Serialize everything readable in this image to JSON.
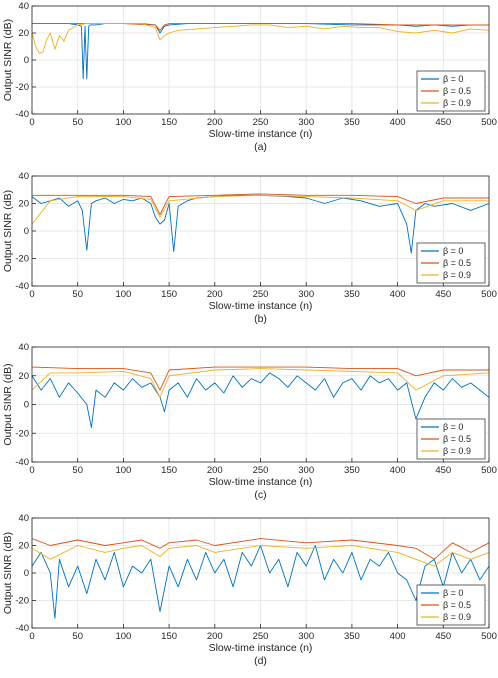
{
  "chart_data": [
    {
      "type": "line",
      "caption": "(a)",
      "xlabel": "Slow-time instance (n)",
      "ylabel": "Output SINR (dB)",
      "xlim": [
        0,
        500
      ],
      "ylim": [
        -40,
        40
      ],
      "xticks": [
        0,
        50,
        100,
        150,
        200,
        250,
        300,
        350,
        400,
        450,
        500
      ],
      "yticks": [
        -40,
        -20,
        0,
        20,
        40
      ],
      "grid": true,
      "legend_position": "bottom-right",
      "series": [
        {
          "name": "β = 0",
          "color": "#0072BD",
          "x": [
            0,
            10,
            20,
            30,
            40,
            50,
            54,
            56,
            58,
            60,
            62,
            64,
            70,
            80,
            100,
            120,
            135,
            140,
            145,
            150,
            170,
            200,
            250,
            300,
            350,
            400,
            420,
            440,
            460,
            480,
            500
          ],
          "y": [
            27,
            27,
            27,
            27,
            27,
            26,
            25,
            -14,
            25,
            -14,
            25,
            26,
            26,
            27,
            27,
            27,
            26,
            20,
            25,
            26,
            27,
            27,
            27,
            27,
            26,
            26,
            25,
            26,
            25,
            26,
            26
          ]
        },
        {
          "name": "β = 0.5",
          "color": "#D95319",
          "x": [
            0,
            50,
            100,
            135,
            140,
            145,
            150,
            200,
            250,
            300,
            350,
            400,
            450,
            500
          ],
          "y": [
            27,
            27,
            27,
            26,
            22,
            26,
            27,
            27,
            27,
            27,
            27,
            26,
            26,
            26
          ]
        },
        {
          "name": "β = 0.9",
          "color": "#EDB120",
          "x": [
            0,
            4,
            8,
            12,
            16,
            20,
            25,
            30,
            35,
            40,
            45,
            50,
            60,
            80,
            100,
            120,
            135,
            140,
            145,
            150,
            160,
            180,
            200,
            220,
            240,
            260,
            280,
            300,
            320,
            340,
            360,
            380,
            400,
            420,
            440,
            460,
            480,
            500
          ],
          "y": [
            20,
            10,
            5,
            6,
            15,
            20,
            8,
            18,
            14,
            22,
            24,
            26,
            27,
            27,
            27,
            27,
            24,
            15,
            18,
            20,
            22,
            23,
            24,
            25,
            26,
            26,
            24,
            25,
            23,
            25,
            24,
            24,
            21,
            20,
            22,
            20,
            23,
            22
          ]
        }
      ]
    },
    {
      "type": "line",
      "caption": "(b)",
      "xlabel": "Slow-time instance (n)",
      "ylabel": "Output SINR (dB)",
      "xlim": [
        0,
        500
      ],
      "ylim": [
        -40,
        40
      ],
      "xticks": [
        0,
        50,
        100,
        150,
        200,
        250,
        300,
        350,
        400,
        450,
        500
      ],
      "yticks": [
        -40,
        -20,
        0,
        20,
        40
      ],
      "grid": true,
      "legend_position": "bottom-right",
      "series": [
        {
          "name": "β = 0",
          "color": "#0072BD",
          "x": [
            0,
            10,
            20,
            30,
            40,
            50,
            55,
            60,
            65,
            70,
            80,
            90,
            100,
            110,
            120,
            130,
            135,
            140,
            145,
            150,
            155,
            160,
            170,
            180,
            200,
            220,
            250,
            280,
            300,
            320,
            340,
            360,
            380,
            400,
            410,
            415,
            420,
            430,
            440,
            460,
            480,
            500
          ],
          "y": [
            25,
            20,
            22,
            24,
            18,
            22,
            15,
            -14,
            20,
            22,
            24,
            20,
            23,
            22,
            24,
            20,
            10,
            5,
            8,
            20,
            -15,
            18,
            22,
            24,
            25,
            26,
            26,
            25,
            24,
            20,
            24,
            22,
            18,
            20,
            5,
            -16,
            15,
            20,
            18,
            20,
            15,
            20
          ]
        },
        {
          "name": "β = 0.5",
          "color": "#D95319",
          "x": [
            0,
            50,
            100,
            130,
            140,
            150,
            200,
            250,
            300,
            350,
            400,
            420,
            450,
            500
          ],
          "y": [
            26,
            26,
            26,
            25,
            12,
            25,
            26,
            27,
            26,
            26,
            25,
            20,
            24,
            24
          ]
        },
        {
          "name": "β = 0.9",
          "color": "#EDB120",
          "x": [
            0,
            20,
            50,
            100,
            130,
            140,
            150,
            200,
            250,
            300,
            350,
            400,
            420,
            450,
            500
          ],
          "y": [
            5,
            22,
            25,
            25,
            23,
            10,
            22,
            25,
            26,
            25,
            24,
            22,
            15,
            22,
            22
          ]
        }
      ]
    },
    {
      "type": "line",
      "caption": "(c)",
      "xlabel": "Slow-time instance (n)",
      "ylabel": "Output SINR (dB)",
      "xlim": [
        0,
        500
      ],
      "ylim": [
        -40,
        40
      ],
      "xticks": [
        0,
        50,
        100,
        150,
        200,
        250,
        300,
        350,
        400,
        450,
        500
      ],
      "yticks": [
        -40,
        -20,
        0,
        20,
        40
      ],
      "grid": true,
      "legend_position": "bottom-right",
      "series": [
        {
          "name": "β = 0",
          "color": "#0072BD",
          "x": [
            0,
            10,
            20,
            30,
            40,
            50,
            60,
            65,
            70,
            80,
            90,
            100,
            110,
            120,
            130,
            140,
            145,
            150,
            160,
            170,
            180,
            190,
            200,
            210,
            220,
            230,
            240,
            250,
            260,
            270,
            280,
            290,
            300,
            310,
            320,
            330,
            340,
            350,
            360,
            370,
            380,
            390,
            400,
            410,
            420,
            430,
            440,
            450,
            460,
            470,
            480,
            490,
            500
          ],
          "y": [
            20,
            10,
            18,
            5,
            15,
            8,
            0,
            -16,
            10,
            5,
            15,
            10,
            18,
            12,
            15,
            5,
            -5,
            10,
            15,
            5,
            18,
            10,
            15,
            8,
            20,
            12,
            18,
            15,
            22,
            18,
            12,
            20,
            15,
            10,
            18,
            5,
            15,
            18,
            10,
            20,
            15,
            18,
            10,
            15,
            -10,
            5,
            15,
            10,
            18,
            12,
            15,
            10,
            5
          ]
        },
        {
          "name": "β = 0.5",
          "color": "#D95319",
          "x": [
            0,
            50,
            100,
            130,
            140,
            150,
            200,
            250,
            300,
            350,
            400,
            420,
            450,
            500
          ],
          "y": [
            26,
            25,
            25,
            22,
            10,
            24,
            26,
            26,
            26,
            25,
            25,
            20,
            24,
            24
          ]
        },
        {
          "name": "β = 0.9",
          "color": "#EDB120",
          "x": [
            0,
            20,
            50,
            100,
            130,
            140,
            150,
            200,
            250,
            300,
            350,
            400,
            420,
            450,
            500
          ],
          "y": [
            10,
            22,
            22,
            23,
            18,
            5,
            20,
            24,
            25,
            24,
            23,
            22,
            10,
            20,
            22
          ]
        }
      ]
    },
    {
      "type": "line",
      "caption": "(d)",
      "xlabel": "Slow-time instance (n)",
      "ylabel": "Output SINR (dB)",
      "xlim": [
        0,
        500
      ],
      "ylim": [
        -40,
        40
      ],
      "xticks": [
        0,
        50,
        100,
        150,
        200,
        250,
        300,
        350,
        400,
        450,
        500
      ],
      "yticks": [
        -40,
        -20,
        0,
        20,
        40
      ],
      "grid": true,
      "legend_position": "bottom-right",
      "series": [
        {
          "name": "β = 0",
          "color": "#0072BD",
          "x": [
            0,
            10,
            20,
            25,
            30,
            40,
            50,
            60,
            70,
            80,
            90,
            100,
            110,
            120,
            130,
            140,
            150,
            160,
            170,
            180,
            190,
            200,
            210,
            220,
            230,
            240,
            250,
            260,
            270,
            280,
            290,
            300,
            310,
            320,
            330,
            340,
            350,
            360,
            370,
            380,
            390,
            400,
            410,
            420,
            430,
            440,
            450,
            460,
            470,
            480,
            490,
            500
          ],
          "y": [
            5,
            15,
            0,
            -33,
            10,
            -10,
            5,
            -15,
            10,
            -5,
            15,
            -10,
            5,
            0,
            10,
            -28,
            5,
            -10,
            10,
            -5,
            15,
            0,
            10,
            -10,
            15,
            5,
            20,
            0,
            10,
            -10,
            15,
            5,
            20,
            -5,
            10,
            0,
            15,
            -5,
            10,
            5,
            15,
            0,
            -5,
            -20,
            5,
            10,
            -10,
            15,
            0,
            10,
            -5,
            5
          ]
        },
        {
          "name": "β = 0.5",
          "color": "#D95319",
          "x": [
            0,
            20,
            50,
            80,
            100,
            120,
            140,
            150,
            180,
            200,
            250,
            300,
            350,
            400,
            420,
            440,
            460,
            480,
            500
          ],
          "y": [
            25,
            20,
            24,
            20,
            22,
            24,
            18,
            22,
            24,
            20,
            25,
            22,
            24,
            20,
            18,
            10,
            22,
            15,
            22
          ]
        },
        {
          "name": "β = 0.9",
          "color": "#EDB120",
          "x": [
            0,
            20,
            50,
            80,
            100,
            120,
            140,
            150,
            180,
            200,
            250,
            300,
            350,
            400,
            420,
            440,
            460,
            480,
            500
          ],
          "y": [
            18,
            10,
            20,
            15,
            18,
            20,
            12,
            18,
            20,
            15,
            20,
            18,
            20,
            15,
            10,
            5,
            15,
            10,
            15
          ]
        }
      ]
    }
  ]
}
